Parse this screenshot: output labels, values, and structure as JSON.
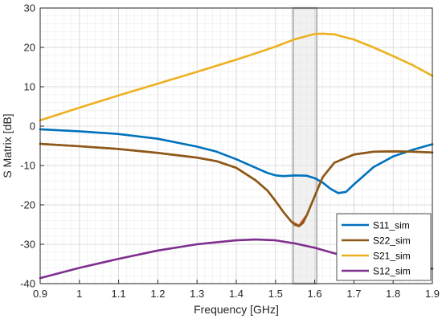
{
  "chart_data": {
    "type": "line",
    "xlabel": "Frequency [GHz]",
    "ylabel": "S Matrix [dB]",
    "xlim": [
      0.9,
      1.9
    ],
    "ylim": [
      -40,
      30
    ],
    "x_ticks": [
      "0.9",
      "1",
      "1.1",
      "1.2",
      "1.3",
      "1.4",
      "1.5",
      "1.6",
      "1.7",
      "1.8",
      "1.9"
    ],
    "y_ticks": [
      "-40",
      "-30",
      "-20",
      "-10",
      "0",
      "10",
      "20",
      "30"
    ],
    "grid": "on (major and minor)",
    "legend_position": "bottom-right",
    "highlight_band": {
      "x": [
        1.545,
        1.605
      ],
      "color": "#e6e6e6",
      "border": "#bdbdbd"
    },
    "series": [
      {
        "name": "S11_sim",
        "color": "#0072BD",
        "x": [
          0.9,
          1.0,
          1.1,
          1.2,
          1.3,
          1.35,
          1.4,
          1.45,
          1.48,
          1.5,
          1.52,
          1.55,
          1.58,
          1.6,
          1.62,
          1.64,
          1.66,
          1.68,
          1.7,
          1.75,
          1.8,
          1.85,
          1.9
        ],
        "y": [
          -0.8,
          -1.3,
          -2.0,
          -3.2,
          -5.2,
          -6.5,
          -8.4,
          -10.6,
          -11.9,
          -12.5,
          -12.7,
          -12.5,
          -12.6,
          -13.2,
          -14.3,
          -15.9,
          -17.0,
          -16.7,
          -14.8,
          -10.4,
          -7.7,
          -6.0,
          -4.6
        ]
      },
      {
        "name": "S22_sim",
        "color": "#8B5A1A",
        "x": [
          0.9,
          1.0,
          1.1,
          1.2,
          1.3,
          1.35,
          1.4,
          1.45,
          1.48,
          1.5,
          1.52,
          1.54,
          1.55,
          1.56,
          1.57,
          1.58,
          1.6,
          1.62,
          1.65,
          1.7,
          1.75,
          1.8,
          1.85,
          1.9
        ],
        "y": [
          -4.5,
          -5.1,
          -5.8,
          -6.8,
          -8.0,
          -8.9,
          -10.6,
          -13.8,
          -16.4,
          -19.0,
          -21.8,
          -24.2,
          -25.1,
          -25.4,
          -24.6,
          -22.6,
          -17.8,
          -13.0,
          -9.3,
          -7.2,
          -6.5,
          -6.4,
          -6.5,
          -6.7
        ]
      },
      {
        "name": "S21_sim",
        "color": "#EDB120",
        "x": [
          0.9,
          1.0,
          1.1,
          1.2,
          1.3,
          1.4,
          1.45,
          1.5,
          1.55,
          1.6,
          1.62,
          1.65,
          1.7,
          1.75,
          1.8,
          1.85,
          1.9
        ],
        "y": [
          1.5,
          4.7,
          7.8,
          10.8,
          13.8,
          16.9,
          18.5,
          20.2,
          22.1,
          23.4,
          23.5,
          23.3,
          22.0,
          20.0,
          17.8,
          15.5,
          12.8
        ]
      },
      {
        "name": "S12_sim",
        "color": "#7E2F8E",
        "x": [
          0.9,
          1.0,
          1.1,
          1.2,
          1.3,
          1.4,
          1.45,
          1.5,
          1.55,
          1.6,
          1.65,
          1.7,
          1.75,
          1.8,
          1.85,
          1.9
        ],
        "y": [
          -38.6,
          -36.0,
          -33.7,
          -31.6,
          -30.0,
          -29.0,
          -28.8,
          -29.0,
          -29.8,
          -30.9,
          -32.3,
          -33.6,
          -34.5,
          -35.1,
          -35.7,
          -36.2
        ]
      }
    ],
    "extra_line": {
      "color": "#D95319",
      "x": [
        0.9,
        1.0,
        1.1,
        1.2,
        1.3,
        1.35,
        1.4,
        1.45,
        1.48,
        1.5,
        1.52,
        1.54,
        1.56,
        1.58,
        1.6,
        1.62,
        1.65,
        1.7,
        1.75,
        1.8,
        1.85,
        1.9
      ],
      "y": [
        -4.5,
        -5.1,
        -5.8,
        -6.8,
        -8.0,
        -8.9,
        -10.6,
        -13.8,
        -16.4,
        -19.0,
        -21.8,
        -24.2,
        -25.3,
        -22.6,
        -17.8,
        -13.0,
        -9.3,
        -7.2,
        -6.5,
        -6.4,
        -6.5,
        -6.7
      ]
    }
  }
}
